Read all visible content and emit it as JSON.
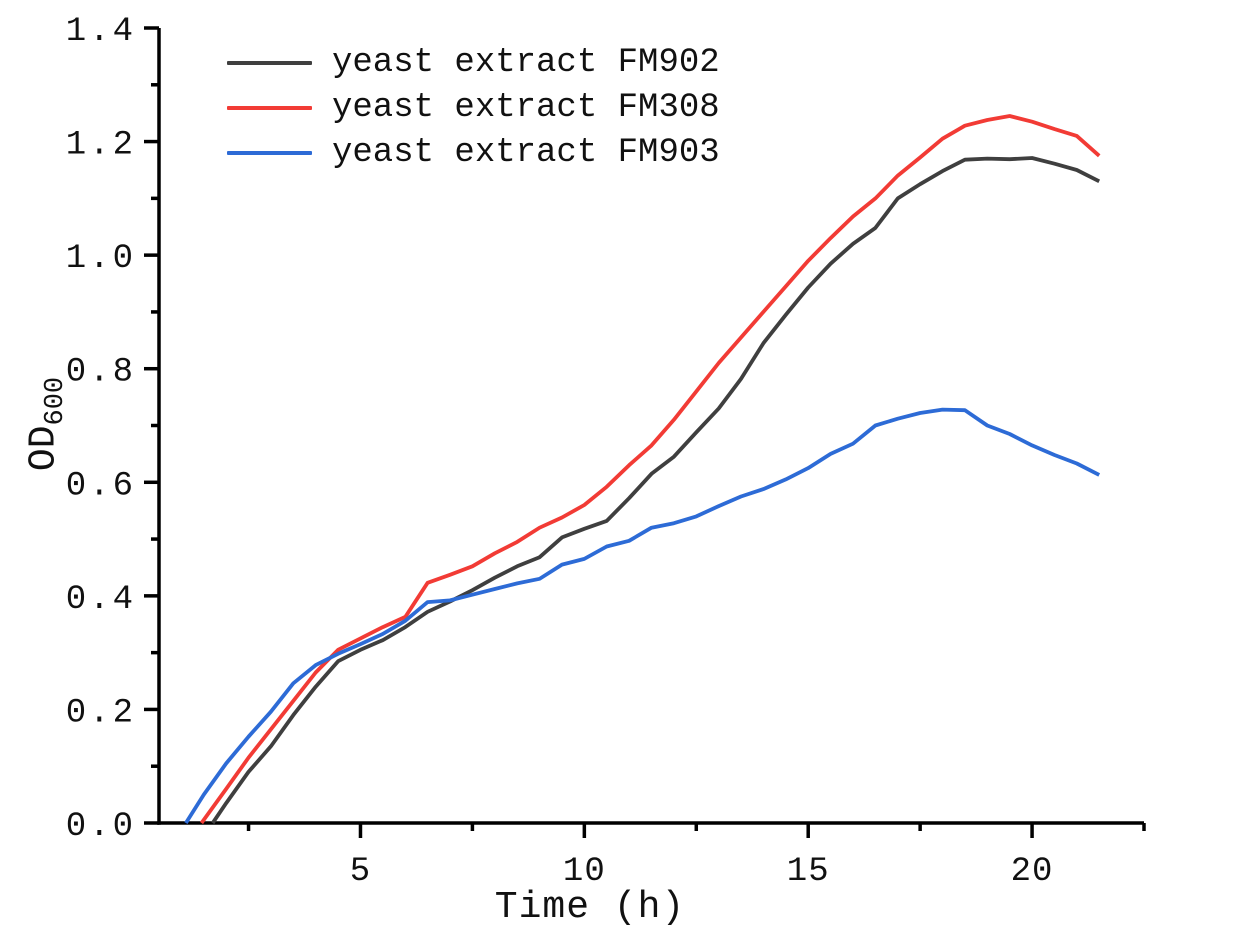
{
  "figure": {
    "background": "#ffffff",
    "axis_color": "#000000",
    "text_color": "#111111"
  },
  "chart_data": {
    "type": "line",
    "xlabel": "Time (h)",
    "ylabel_base": "OD",
    "ylabel_sub": "600",
    "xlim": [
      0.5,
      22.5
    ],
    "ylim": [
      0.0,
      1.4
    ],
    "grid": false,
    "legend_position": "top-left-inside",
    "x_major_ticks": [
      {
        "value": 5,
        "label": "5"
      },
      {
        "value": 10,
        "label": "10"
      },
      {
        "value": 15,
        "label": "15"
      },
      {
        "value": 20,
        "label": "20"
      }
    ],
    "x_minor_ticks": [
      2.5,
      7.5,
      12.5,
      17.5,
      22.5
    ],
    "y_major_ticks": [
      {
        "value": 0.0,
        "label": "0.0"
      },
      {
        "value": 0.2,
        "label": "0.2"
      },
      {
        "value": 0.4,
        "label": "0.4"
      },
      {
        "value": 0.6,
        "label": "0.6"
      },
      {
        "value": 0.8,
        "label": "0.8"
      },
      {
        "value": 1.0,
        "label": "1.0"
      },
      {
        "value": 1.2,
        "label": "1.2"
      },
      {
        "value": 1.4,
        "label": "1.4"
      }
    ],
    "y_minor_ticks": [
      0.1,
      0.3,
      0.5,
      0.7,
      0.9,
      1.1,
      1.3
    ],
    "series": [
      {
        "name": "yeast extract FM902",
        "color": "#3f3f3f",
        "points": [
          [
            1.7,
            0
          ],
          [
            2,
            0.035
          ],
          [
            2.5,
            0.09
          ],
          [
            3,
            0.135
          ],
          [
            3.5,
            0.19
          ],
          [
            4,
            0.24
          ],
          [
            4.5,
            0.285
          ],
          [
            5,
            0.305
          ],
          [
            5.5,
            0.322
          ],
          [
            6,
            0.345
          ],
          [
            6.5,
            0.372
          ],
          [
            7,
            0.39
          ],
          [
            7.5,
            0.41
          ],
          [
            8,
            0.432
          ],
          [
            8.5,
            0.452
          ],
          [
            9,
            0.468
          ],
          [
            9.5,
            0.503
          ],
          [
            10,
            0.518
          ],
          [
            10.5,
            0.532
          ],
          [
            11,
            0.572
          ],
          [
            11.5,
            0.615
          ],
          [
            12,
            0.645
          ],
          [
            12.5,
            0.688
          ],
          [
            13,
            0.73
          ],
          [
            13.5,
            0.782
          ],
          [
            14,
            0.845
          ],
          [
            14.5,
            0.895
          ],
          [
            15,
            0.943
          ],
          [
            15.5,
            0.985
          ],
          [
            16,
            1.02
          ],
          [
            16.5,
            1.048
          ],
          [
            17,
            1.1
          ],
          [
            17.5,
            1.125
          ],
          [
            18,
            1.148
          ],
          [
            18.5,
            1.168
          ],
          [
            19,
            1.17
          ],
          [
            19.5,
            1.169
          ],
          [
            20,
            1.171
          ],
          [
            20.5,
            1.161
          ],
          [
            21,
            1.15
          ],
          [
            21.5,
            1.13
          ]
        ]
      },
      {
        "name": "yeast extract FM308",
        "color": "#f23b35",
        "points": [
          [
            1.45,
            0
          ],
          [
            2,
            0.06
          ],
          [
            2.5,
            0.115
          ],
          [
            3,
            0.165
          ],
          [
            3.5,
            0.215
          ],
          [
            4,
            0.265
          ],
          [
            4.5,
            0.305
          ],
          [
            5,
            0.325
          ],
          [
            5.5,
            0.345
          ],
          [
            6,
            0.363
          ],
          [
            6.5,
            0.423
          ],
          [
            7,
            0.437
          ],
          [
            7.5,
            0.452
          ],
          [
            8,
            0.475
          ],
          [
            8.5,
            0.495
          ],
          [
            9,
            0.52
          ],
          [
            9.5,
            0.538
          ],
          [
            10,
            0.56
          ],
          [
            10.5,
            0.592
          ],
          [
            11,
            0.63
          ],
          [
            11.5,
            0.665
          ],
          [
            12,
            0.71
          ],
          [
            12.5,
            0.76
          ],
          [
            13,
            0.81
          ],
          [
            13.5,
            0.855
          ],
          [
            14,
            0.9
          ],
          [
            14.5,
            0.945
          ],
          [
            15,
            0.99
          ],
          [
            15.5,
            1.03
          ],
          [
            16,
            1.068
          ],
          [
            16.5,
            1.1
          ],
          [
            17,
            1.14
          ],
          [
            17.5,
            1.172
          ],
          [
            18,
            1.205
          ],
          [
            18.5,
            1.228
          ],
          [
            19,
            1.238
          ],
          [
            19.5,
            1.245
          ],
          [
            20,
            1.235
          ],
          [
            20.5,
            1.222
          ],
          [
            21,
            1.21
          ],
          [
            21.5,
            1.175
          ]
        ]
      },
      {
        "name": "yeast extract FM903",
        "color": "#2d6bd6",
        "points": [
          [
            1.1,
            0
          ],
          [
            1.5,
            0.05
          ],
          [
            2,
            0.105
          ],
          [
            2.5,
            0.152
          ],
          [
            3,
            0.196
          ],
          [
            3.5,
            0.246
          ],
          [
            4,
            0.278
          ],
          [
            4.5,
            0.298
          ],
          [
            5,
            0.315
          ],
          [
            5.5,
            0.333
          ],
          [
            6,
            0.356
          ],
          [
            6.5,
            0.389
          ],
          [
            7,
            0.392
          ],
          [
            7.5,
            0.402
          ],
          [
            8,
            0.412
          ],
          [
            8.5,
            0.422
          ],
          [
            9,
            0.43
          ],
          [
            9.5,
            0.455
          ],
          [
            10,
            0.465
          ],
          [
            10.5,
            0.487
          ],
          [
            11,
            0.497
          ],
          [
            11.5,
            0.52
          ],
          [
            12,
            0.528
          ],
          [
            12.5,
            0.54
          ],
          [
            13,
            0.558
          ],
          [
            13.5,
            0.575
          ],
          [
            14,
            0.588
          ],
          [
            14.5,
            0.605
          ],
          [
            15,
            0.625
          ],
          [
            15.5,
            0.65
          ],
          [
            16,
            0.668
          ],
          [
            16.5,
            0.7
          ],
          [
            17,
            0.712
          ],
          [
            17.5,
            0.722
          ],
          [
            18,
            0.728
          ],
          [
            18.5,
            0.727
          ],
          [
            19,
            0.7
          ],
          [
            19.5,
            0.685
          ],
          [
            20,
            0.665
          ],
          [
            20.5,
            0.648
          ],
          [
            21,
            0.633
          ],
          [
            21.5,
            0.613
          ]
        ]
      }
    ]
  }
}
